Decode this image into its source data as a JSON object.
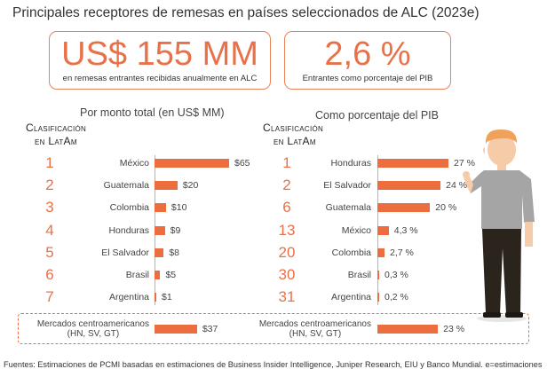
{
  "title": "Principales receptores de remesas en países seleccionados de ALC (2023e)",
  "kpis": [
    {
      "big": "US$ 155 MM",
      "small": "en remesas entrantes recibidas anualmente en ALC"
    },
    {
      "big": "2,6 %",
      "small": "Entrantes como porcentaje del PIB"
    }
  ],
  "colors": {
    "accent": "#ec6e3f",
    "rank": "#e8714a",
    "shirt": "#a5a5a5",
    "pants": "#2b241d",
    "hair": "#f0a15a",
    "skin": "#f6cba7"
  },
  "chart_data": [
    {
      "type": "bar",
      "orientation": "horizontal",
      "title": "Por monto total (en US$ MM)",
      "rank_header": [
        "Clasificación",
        "en LatAm"
      ],
      "ranks": [
        "1",
        "2",
        "3",
        "4",
        "5",
        "6",
        "7"
      ],
      "categories": [
        "México",
        "Guatemala",
        "Colombia",
        "Honduras",
        "El Salvador",
        "Brasil",
        "Argentina"
      ],
      "values": [
        65,
        20,
        10,
        9,
        8,
        5,
        1
      ],
      "labels": [
        "$65",
        "$20",
        "$10",
        "$9",
        "$8",
        "$5",
        "$1"
      ],
      "xlim": [
        0,
        65
      ],
      "aggregate": {
        "category": [
          "Mercados centroamericanos",
          "(HN, SV, GT)"
        ],
        "value": 37,
        "label": "$37"
      }
    },
    {
      "type": "bar",
      "orientation": "horizontal",
      "title": "Como porcentaje del PIB",
      "rank_header": [
        "Clasificación",
        "en LatAm"
      ],
      "ranks": [
        "1",
        "2",
        "6",
        "13",
        "20",
        "30",
        "31"
      ],
      "categories": [
        "Honduras",
        "El Salvador",
        "Guatemala",
        "México",
        "Colombia",
        "Brasil",
        "Argentina"
      ],
      "values": [
        27,
        24,
        20,
        4.3,
        2.7,
        0.3,
        0.2
      ],
      "labels": [
        "27 %",
        "24 %",
        "20 %",
        "4,3 %",
        "2,7 %",
        "0,3 %",
        "0,2 %"
      ],
      "xlim": [
        0,
        27
      ],
      "aggregate": {
        "category": [
          "Mercados centroamericanos",
          "(HN, SV, GT)"
        ],
        "value": 23,
        "label": "23 %"
      }
    }
  ],
  "source": "Fuentes: Estimaciones de PCMI basadas en estimaciones de Business Insider Intelligence, Juniper Research, EIU y Banco Mundial. e=estimaciones"
}
